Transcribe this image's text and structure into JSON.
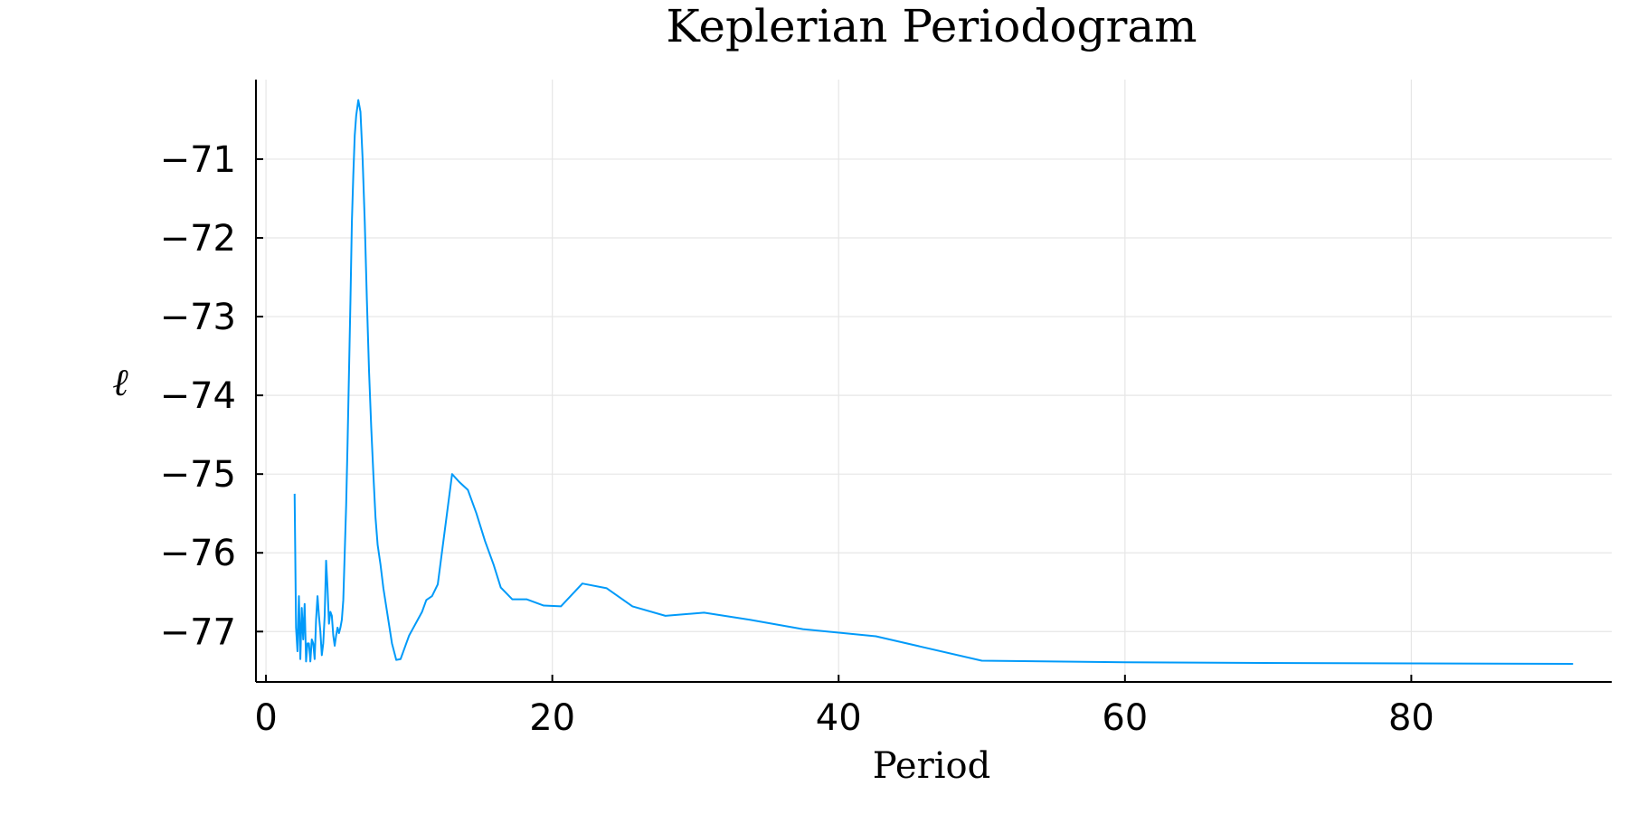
{
  "chart_data": {
    "type": "line",
    "title": "Keplerian Periodogram",
    "xlabel": "Period",
    "ylabel": "ℓ",
    "xlim": [
      -0.7,
      94
    ],
    "ylim": [
      -77.64,
      -69.99
    ],
    "x_ticks": [
      0,
      20,
      40,
      60,
      80
    ],
    "y_ticks": [
      -71,
      -72,
      -73,
      -74,
      -75,
      -76,
      -77
    ],
    "x_tick_labels": [
      "0",
      "20",
      "40",
      "60",
      "80"
    ],
    "y_tick_labels": [
      "−71",
      "−72",
      "−73",
      "−74",
      "−75",
      "−76",
      "−77"
    ],
    "grid": true,
    "legend": false,
    "series": [
      {
        "color": "#009af9",
        "x": [
          2.0,
          2.1,
          2.2,
          2.3,
          2.4,
          2.5,
          2.6,
          2.7,
          2.8,
          2.9,
          3.0,
          3.1,
          3.2,
          3.3,
          3.4,
          3.5,
          3.6,
          3.7,
          3.8,
          3.9,
          4.0,
          4.1,
          4.2,
          4.3,
          4.4,
          4.5,
          4.6,
          4.7,
          4.8,
          4.9,
          5.0,
          5.1,
          5.2,
          5.3,
          5.4,
          5.5,
          5.6,
          5.7,
          5.8,
          5.9,
          6.0,
          6.1,
          6.2,
          6.3,
          6.45,
          6.6,
          6.75,
          6.9,
          7.05,
          7.2,
          7.35,
          7.5,
          7.65,
          7.8,
          8.0,
          8.2,
          8.5,
          8.8,
          9.1,
          9.4,
          9.6,
          9.8,
          10.0,
          10.3,
          10.6,
          10.9,
          11.2,
          11.6,
          12.0,
          12.5,
          13.0,
          13.5,
          14.1,
          14.7,
          15.3,
          15.9,
          16.4,
          17.2,
          18.2,
          19.4,
          20.6,
          22.1,
          23.8,
          25.6,
          27.9,
          30.6,
          33.8,
          37.5,
          42.6,
          50.0,
          60.0,
          72.0,
          91.3
        ],
        "values": [
          -75.25,
          -76.95,
          -77.25,
          -76.55,
          -77.35,
          -76.7,
          -77.1,
          -76.65,
          -77.38,
          -77.15,
          -77.15,
          -77.38,
          -77.1,
          -77.15,
          -77.35,
          -76.85,
          -76.55,
          -76.8,
          -77.0,
          -77.3,
          -77.15,
          -76.8,
          -76.1,
          -76.45,
          -76.9,
          -76.75,
          -76.8,
          -77.05,
          -77.18,
          -77.05,
          -76.95,
          -77.02,
          -76.95,
          -76.85,
          -76.6,
          -76.0,
          -75.4,
          -74.6,
          -73.7,
          -72.8,
          -71.8,
          -71.2,
          -70.7,
          -70.45,
          -70.25,
          -70.4,
          -71.0,
          -71.8,
          -72.8,
          -73.7,
          -74.4,
          -75.0,
          -75.55,
          -75.9,
          -76.15,
          -76.45,
          -76.8,
          -77.15,
          -77.36,
          -77.35,
          -77.25,
          -77.15,
          -77.05,
          -76.95,
          -76.85,
          -76.75,
          -76.6,
          -76.55,
          -76.4,
          -75.7,
          -75.0,
          -75.1,
          -75.2,
          -75.5,
          -75.85,
          -76.15,
          -76.44,
          -76.59,
          -76.59,
          -76.67,
          -76.68,
          -76.39,
          -76.45,
          -76.68,
          -76.8,
          -76.76,
          -76.85,
          -76.97,
          -77.06,
          -77.37,
          -77.39,
          -77.4,
          -77.41
        ]
      }
    ]
  }
}
